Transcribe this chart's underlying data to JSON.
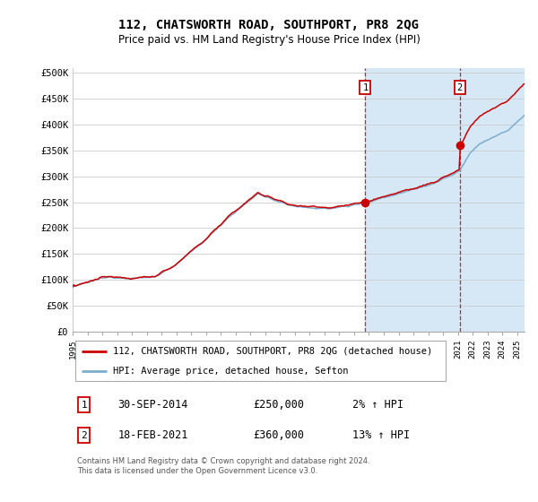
{
  "title": "112, CHATSWORTH ROAD, SOUTHPORT, PR8 2QG",
  "subtitle": "Price paid vs. HM Land Registry's House Price Index (HPI)",
  "title_fontsize": 10,
  "subtitle_fontsize": 8.5,
  "ylabel_ticks": [
    "£0",
    "£50K",
    "£100K",
    "£150K",
    "£200K",
    "£250K",
    "£300K",
    "£350K",
    "£400K",
    "£450K",
    "£500K"
  ],
  "ytick_values": [
    0,
    50000,
    100000,
    150000,
    200000,
    250000,
    300000,
    350000,
    400000,
    450000,
    500000
  ],
  "ylim": [
    0,
    510000
  ],
  "sale1_price": 250000,
  "sale1_marker_x": 2014.75,
  "sale2_price": 360000,
  "sale2_marker_x": 2021.125,
  "legend1_label": "112, CHATSWORTH ROAD, SOUTHPORT, PR8 2QG (detached house)",
  "legend2_label": "HPI: Average price, detached house, Sefton",
  "table_row1": [
    "1",
    "30-SEP-2014",
    "£250,000",
    "2% ↑ HPI"
  ],
  "table_row2": [
    "2",
    "18-FEB-2021",
    "£360,000",
    "13% ↑ HPI"
  ],
  "footnote": "Contains HM Land Registry data © Crown copyright and database right 2024.\nThis data is licensed under the Open Government Licence v3.0.",
  "red_color": "#cc0000",
  "blue_color": "#7aadcf",
  "shade_color": "#d6e8f5",
  "grid_color": "#cccccc",
  "bg_color": "#ffffff",
  "vline_color": "#cc0000",
  "xmin": 1995,
  "xmax": 2025.5
}
